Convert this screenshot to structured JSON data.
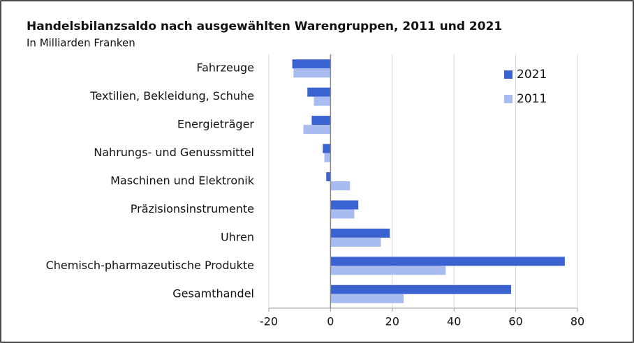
{
  "chart_data": {
    "type": "hbar",
    "title": "Handelsbilanzsaldo nach ausgewählten Warengruppen, 2011 und 2021",
    "subtitle": "In Milliarden Franken",
    "categories": [
      "Fahrzeuge",
      "Textilien, Bekleidung, Schuhe",
      "Energieträger",
      "Nahrungs- und Genussmittel",
      "Maschinen und Elektronik",
      "Präzisionsinstrumente",
      "Uhren",
      "Chemisch-pharmazeutische Produkte",
      "Gesamthandel"
    ],
    "series": [
      {
        "name": "2021",
        "color": "#3a62d0",
        "values": [
          -12.4,
          -7.5,
          -6.1,
          -2.5,
          -1.4,
          9.0,
          19.2,
          75.9,
          58.5
        ]
      },
      {
        "name": "2011",
        "color": "#a9bcef",
        "values": [
          -12.0,
          -5.4,
          -8.8,
          -2.0,
          6.3,
          7.7,
          16.3,
          37.3,
          23.7
        ]
      }
    ],
    "xlim": [
      -20,
      80
    ],
    "xticks": [
      -20,
      0,
      20,
      40,
      60,
      80
    ],
    "grid": true,
    "legend": "top-right"
  }
}
